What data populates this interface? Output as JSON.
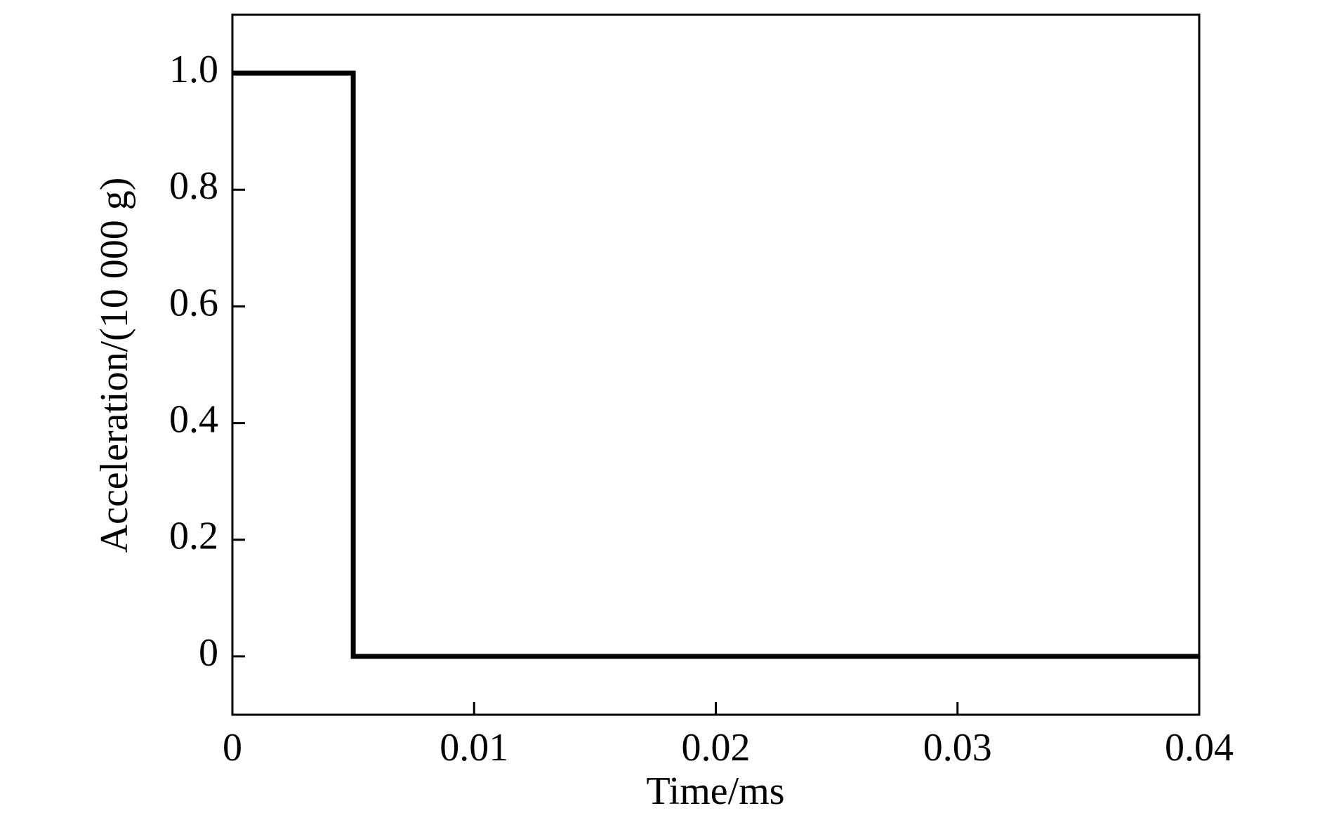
{
  "chart_data": {
    "type": "line",
    "x_label": "Time/ms",
    "y_label": "Acceleration/(10 000 g)",
    "x": [
      0,
      0.005,
      0.005,
      0.04
    ],
    "series": [
      {
        "color": "#000000",
        "values": [
          1,
          1,
          0,
          0
        ]
      }
    ],
    "xlim": [
      0,
      0.04
    ],
    "xticks": [
      0,
      0.01,
      0.02,
      0.03,
      0.04
    ],
    "ylim": [
      -0.1,
      1.1
    ],
    "yticks": [
      0,
      0.2,
      0.4,
      0.6,
      0.8,
      {
        "value": 1,
        "label": "1.0"
      }
    ],
    "grid": false
  }
}
